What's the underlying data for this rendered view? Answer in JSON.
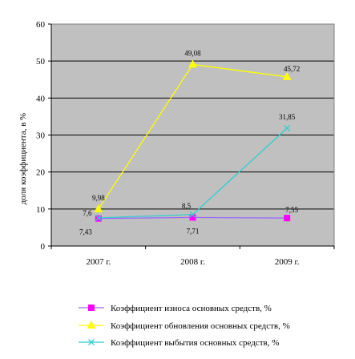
{
  "chart_data": {
    "type": "line",
    "categories": [
      "2007 г.",
      "2008 г.",
      "2009 г."
    ],
    "ylim": [
      0,
      60
    ],
    "yticks": [
      "0",
      "10",
      "20",
      "30",
      "40",
      "50",
      "60"
    ],
    "ylabel": "доля коэффициента, в %",
    "xlabel": "",
    "title": "",
    "grid": true,
    "legend_position": "bottom",
    "series": [
      {
        "name": "Коэффициент износа основных средств, %",
        "values": [
          7.43,
          7.71,
          7.55
        ],
        "labels": [
          "7,43",
          "7,71",
          "7,55"
        ],
        "color": "#ff00ff",
        "marker": "square"
      },
      {
        "name": "Коэффициент обновления основных средств, %",
        "values": [
          9.98,
          49.08,
          45.72
        ],
        "labels": [
          "9,98",
          "49,08",
          "45,72"
        ],
        "color": "#ffff00",
        "marker": "triangle"
      },
      {
        "name": "Коэффициент выбытия основных средств, %",
        "values": [
          7.6,
          8.5,
          31.85
        ],
        "labels": [
          "7,6",
          "8,5",
          "31,85"
        ],
        "color": "#33cccc",
        "marker": "x"
      }
    ]
  },
  "colors": {
    "plot_background": "#c0c0c0",
    "gridline": "#000000"
  }
}
